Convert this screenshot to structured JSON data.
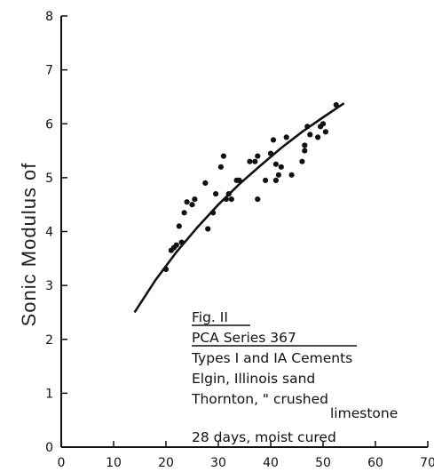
{
  "chart_data": {
    "type": "scatter",
    "ylabel": "Sonic Modulus of",
    "xlabel": "",
    "xlim": [
      0,
      70
    ],
    "ylim": [
      0,
      8
    ],
    "x_ticks": [
      "0",
      "10",
      "20",
      "30",
      "40",
      "50",
      "60",
      "70"
    ],
    "y_ticks": [
      "0",
      "1",
      "2",
      "3",
      "4",
      "5",
      "6",
      "7",
      "8"
    ],
    "points": [
      {
        "x": 20,
        "y": 3.3
      },
      {
        "x": 21,
        "y": 3.65
      },
      {
        "x": 21.5,
        "y": 3.7
      },
      {
        "x": 22,
        "y": 3.75
      },
      {
        "x": 23,
        "y": 3.8
      },
      {
        "x": 22.5,
        "y": 4.1
      },
      {
        "x": 23.5,
        "y": 4.35
      },
      {
        "x": 24,
        "y": 4.55
      },
      {
        "x": 25,
        "y": 4.5
      },
      {
        "x": 25.5,
        "y": 4.6
      },
      {
        "x": 27.5,
        "y": 4.9
      },
      {
        "x": 28,
        "y": 4.05
      },
      {
        "x": 29,
        "y": 4.35
      },
      {
        "x": 29.5,
        "y": 4.7
      },
      {
        "x": 30.5,
        "y": 5.2
      },
      {
        "x": 31,
        "y": 5.4
      },
      {
        "x": 31.5,
        "y": 4.6
      },
      {
        "x": 32,
        "y": 4.7
      },
      {
        "x": 32.5,
        "y": 4.6
      },
      {
        "x": 33.5,
        "y": 4.95
      },
      {
        "x": 34,
        "y": 4.95
      },
      {
        "x": 36,
        "y": 5.3
      },
      {
        "x": 37,
        "y": 5.3
      },
      {
        "x": 37.5,
        "y": 5.4
      },
      {
        "x": 37.5,
        "y": 4.6
      },
      {
        "x": 39,
        "y": 4.95
      },
      {
        "x": 40,
        "y": 5.45
      },
      {
        "x": 40.5,
        "y": 5.7
      },
      {
        "x": 41,
        "y": 5.25
      },
      {
        "x": 41,
        "y": 4.95
      },
      {
        "x": 41.5,
        "y": 5.05
      },
      {
        "x": 42,
        "y": 5.2
      },
      {
        "x": 43,
        "y": 5.75
      },
      {
        "x": 44,
        "y": 5.05
      },
      {
        "x": 46,
        "y": 5.3
      },
      {
        "x": 46.5,
        "y": 5.5
      },
      {
        "x": 46.5,
        "y": 5.6
      },
      {
        "x": 47,
        "y": 5.95
      },
      {
        "x": 47.5,
        "y": 5.8
      },
      {
        "x": 49,
        "y": 5.75
      },
      {
        "x": 49.5,
        "y": 5.95
      },
      {
        "x": 50,
        "y": 6.0
      },
      {
        "x": 50.5,
        "y": 5.85
      },
      {
        "x": 52.5,
        "y": 6.35
      }
    ],
    "fit_curve": [
      {
        "x": 14,
        "y": 2.5
      },
      {
        "x": 18,
        "y": 3.1
      },
      {
        "x": 22,
        "y": 3.62
      },
      {
        "x": 26,
        "y": 4.08
      },
      {
        "x": 30,
        "y": 4.5
      },
      {
        "x": 34,
        "y": 4.88
      },
      {
        "x": 38,
        "y": 5.22
      },
      {
        "x": 42,
        "y": 5.55
      },
      {
        "x": 46,
        "y": 5.85
      },
      {
        "x": 50,
        "y": 6.12
      },
      {
        "x": 54,
        "y": 6.38
      }
    ],
    "annotations": [
      "Fig. II",
      "PCA Series 367",
      "Types I and IA Cements",
      "Elgin, Illinois  sand",
      "Thornton,  \"  crushed",
      "limestone",
      "28 days,     moist cured"
    ]
  }
}
